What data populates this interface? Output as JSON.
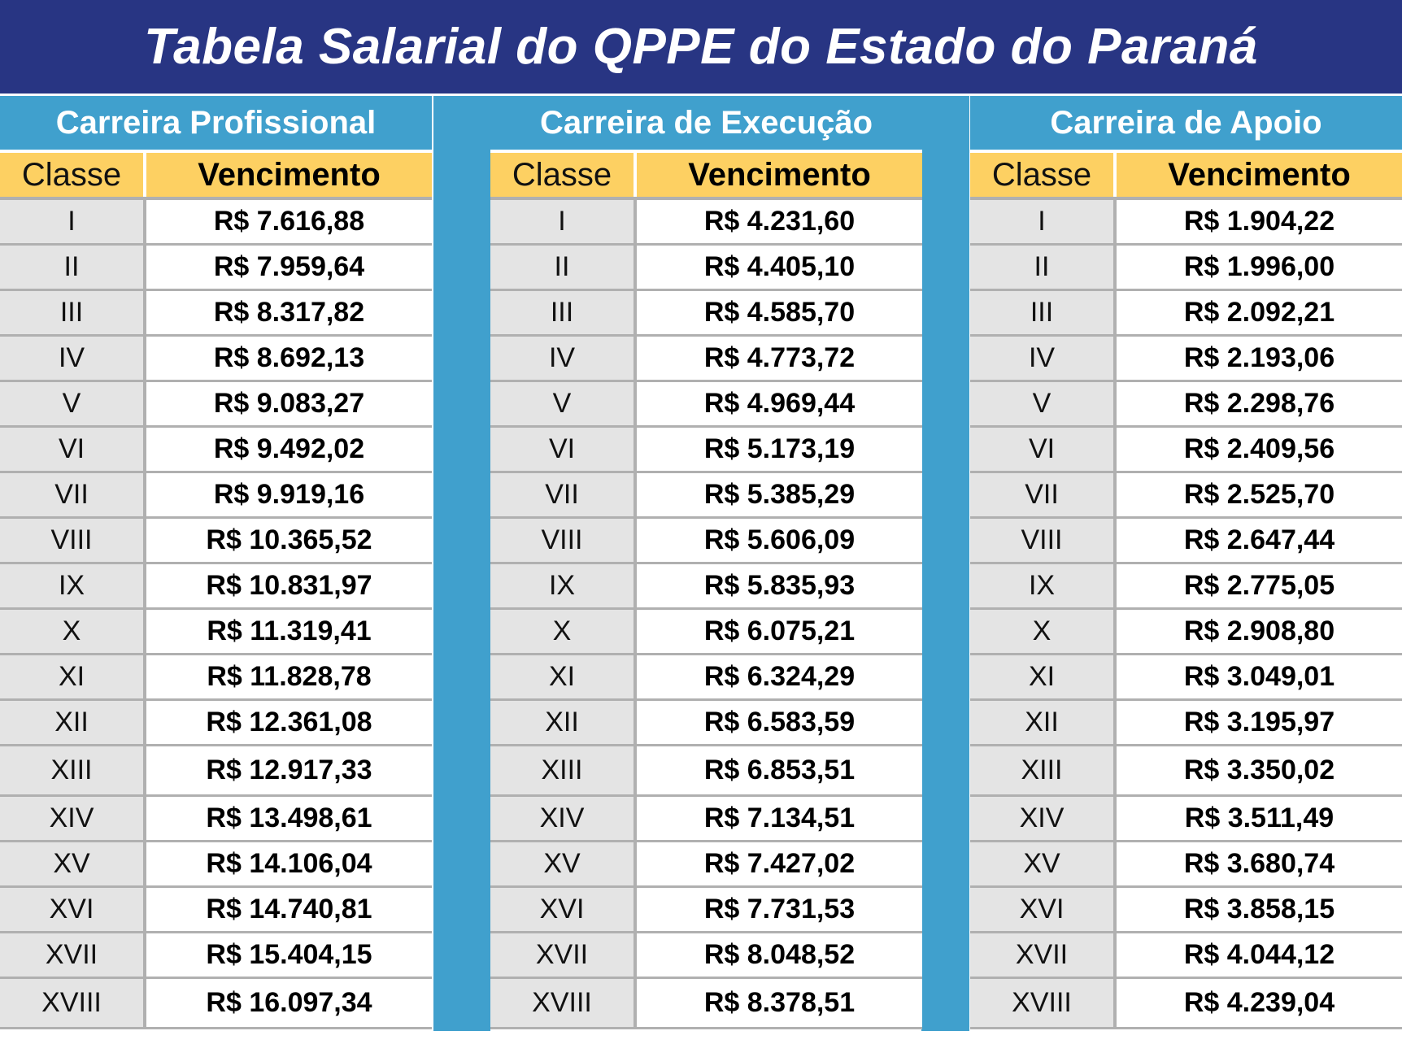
{
  "title": "Tabela Salarial do QPPE do Estado do Paraná",
  "colors": {
    "title_bg": "#283583",
    "header_bg": "#40a0cd",
    "subheader_bg": "#fdd062",
    "classe_bg": "#e4e4e4"
  },
  "column_headers": {
    "classe": "Classe",
    "vencimento": "Vencimento"
  },
  "classes": [
    "I",
    "II",
    "III",
    "IV",
    "V",
    "VI",
    "VII",
    "VIII",
    "IX",
    "X",
    "XI",
    "XII",
    "XIII",
    "XIV",
    "XV",
    "XVI",
    "XVII",
    "XVIII"
  ],
  "tables": [
    {
      "title": "Carreira Profissional",
      "values": [
        "R$ 7.616,88",
        "R$ 7.959,64",
        "R$ 8.317,82",
        "R$ 8.692,13",
        "R$ 9.083,27",
        "R$ 9.492,02",
        "R$ 9.919,16",
        "R$ 10.365,52",
        "R$ 10.831,97",
        "R$ 11.319,41",
        "R$ 11.828,78",
        "R$ 12.361,08",
        "R$ 12.917,33",
        "R$ 13.498,61",
        "R$ 14.106,04",
        "R$ 14.740,81",
        "R$ 15.404,15",
        "R$ 16.097,34"
      ]
    },
    {
      "title": "Carreira de Execução",
      "values": [
        "R$ 4.231,60",
        "R$ 4.405,10",
        "R$ 4.585,70",
        "R$ 4.773,72",
        "R$ 4.969,44",
        "R$ 5.173,19",
        "R$ 5.385,29",
        "R$ 5.606,09",
        "R$ 5.835,93",
        "R$ 6.075,21",
        "R$ 6.324,29",
        "R$ 6.583,59",
        "R$ 6.853,51",
        "R$ 7.134,51",
        "R$ 7.427,02",
        "R$ 7.731,53",
        "R$ 8.048,52",
        "R$ 8.378,51"
      ]
    },
    {
      "title": "Carreira de Apoio",
      "values": [
        "R$ 1.904,22",
        "R$ 1.996,00",
        "R$ 2.092,21",
        "R$ 2.193,06",
        "R$ 2.298,76",
        "R$ 2.409,56",
        "R$ 2.525,70",
        "R$ 2.647,44",
        "R$ 2.775,05",
        "R$ 2.908,80",
        "R$ 3.049,01",
        "R$ 3.195,97",
        "R$ 3.350,02",
        "R$ 3.511,49",
        "R$ 3.680,74",
        "R$ 3.858,15",
        "R$ 4.044,12",
        "R$ 4.239,04"
      ]
    }
  ]
}
